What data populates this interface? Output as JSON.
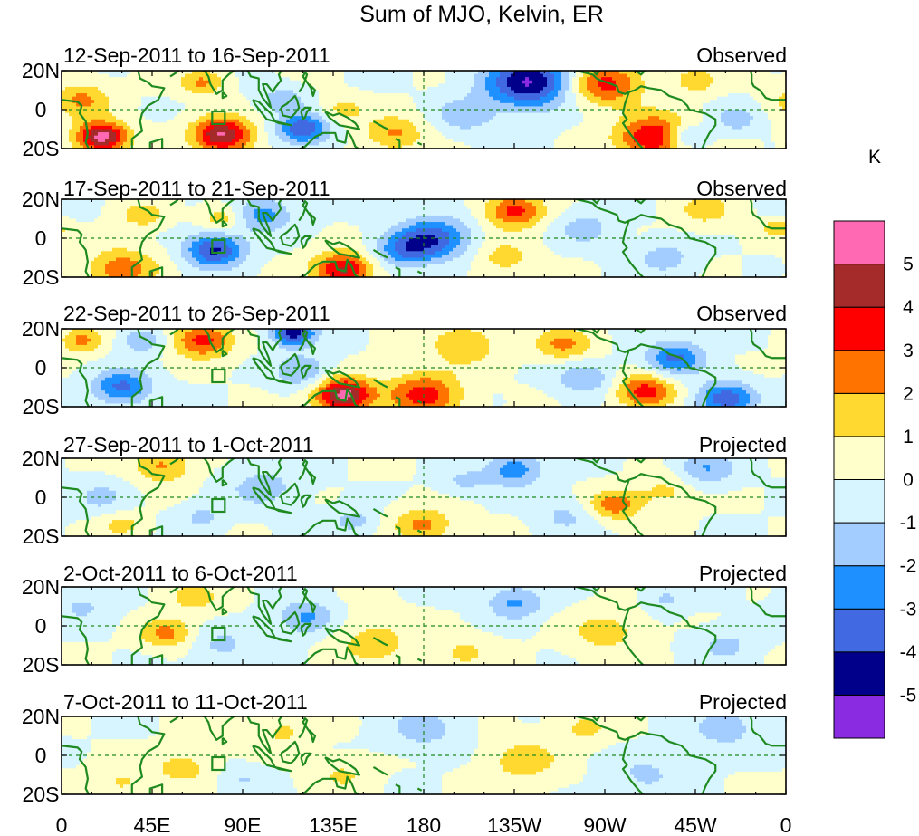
{
  "chart_data": {
    "type": "heatmap",
    "title": "Sum of MJO, Kelvin, ER",
    "units_label": "K",
    "y_tick_labels": [
      "20N",
      "0",
      "20S"
    ],
    "x_tick_labels": [
      "0",
      "45E",
      "90E",
      "135E",
      "180",
      "135W",
      "90W",
      "45W",
      "0"
    ],
    "lon_range": [
      0,
      360
    ],
    "lat_range": [
      -20,
      20
    ],
    "panels": [
      {
        "period": "12-Sep-2011 to 16-Sep-2011",
        "status": "Observed",
        "blobs": [
          [
            20,
            -14,
            3.5,
            5.5
          ],
          [
            80,
            -13,
            4,
            5.2
          ],
          [
            70,
            14,
            3,
            2.2
          ],
          [
            120,
            -10,
            3.5,
            -4
          ],
          [
            165,
            -12,
            4,
            2.2
          ],
          [
            232,
            14,
            6,
            -5
          ],
          [
            270,
            13,
            5,
            3.4
          ],
          [
            295,
            -14,
            5,
            4.3
          ],
          [
            310,
            -14,
            3,
            -2.5
          ],
          [
            335,
            -5,
            3,
            -1.7
          ],
          [
            10,
            5,
            4,
            2.2
          ],
          [
            315,
            15,
            3,
            1.7
          ],
          [
            200,
            -3,
            4,
            -1.7
          ],
          [
            140,
            0,
            3,
            1.4
          ],
          [
            110,
            5,
            3,
            -1.8
          ]
        ]
      },
      {
        "period": "17-Sep-2011 to 21-Sep-2011",
        "status": "Observed",
        "blobs": [
          [
            140,
            -16,
            4,
            4.3
          ],
          [
            76,
            -6,
            4,
            -4.2
          ],
          [
            225,
            14,
            4,
            3.4
          ],
          [
            100,
            12,
            4,
            -2.5
          ],
          [
            30,
            -16,
            5,
            2.5
          ],
          [
            185,
            0,
            5,
            -3.5
          ],
          [
            170,
            -6,
            4,
            -2.5
          ],
          [
            80,
            10,
            3,
            1.8
          ],
          [
            220,
            -10,
            4,
            1.5
          ],
          [
            300,
            -10,
            4,
            -1.5
          ],
          [
            320,
            15,
            4,
            1.5
          ],
          [
            40,
            12,
            3,
            1.7
          ],
          [
            355,
            5,
            2,
            1.9
          ],
          [
            260,
            5,
            4,
            -1.5
          ]
        ]
      },
      {
        "period": "22-Sep-2011 to 26-Sep-2011",
        "status": "Observed",
        "blobs": [
          [
            70,
            14,
            4,
            3.5
          ],
          [
            140,
            -14,
            4,
            5.5
          ],
          [
            30,
            -10,
            4,
            -3.3
          ],
          [
            115,
            18,
            3,
            -4.7
          ],
          [
            180,
            -14,
            5,
            3.5
          ],
          [
            290,
            -12,
            4,
            3.5
          ],
          [
            305,
            5,
            4,
            -3.2
          ],
          [
            330,
            -16,
            4,
            -3.6
          ],
          [
            200,
            12,
            5,
            1.8
          ],
          [
            250,
            12,
            4,
            2.3
          ],
          [
            40,
            14,
            3,
            -2
          ],
          [
            10,
            14,
            3,
            2.3
          ],
          [
            120,
            -2,
            4,
            -2
          ],
          [
            260,
            -5,
            4,
            -2
          ]
        ]
      },
      {
        "period": "27-Sep-2011 to 1-Oct-2011",
        "status": "Projected",
        "blobs": [
          [
            275,
            -4,
            3.5,
            2.6
          ],
          [
            180,
            -14,
            4,
            2.3
          ],
          [
            50,
            16,
            4,
            2.2
          ],
          [
            225,
            14,
            4,
            -2.6
          ],
          [
            320,
            15,
            4,
            -2
          ],
          [
            100,
            5,
            5,
            -1.5
          ],
          [
            20,
            0,
            4,
            -1.2
          ],
          [
            145,
            -12,
            3,
            -1.5
          ],
          [
            300,
            3,
            4,
            1.3
          ],
          [
            250,
            -10,
            4,
            -1.2
          ],
          [
            30,
            -14,
            3,
            1.4
          ],
          [
            70,
            -10,
            3,
            -1.3
          ],
          [
            200,
            8,
            3,
            -1.2
          ]
        ]
      },
      {
        "period": "2-Oct-2011 to 6-Oct-2011",
        "status": "Projected",
        "blobs": [
          [
            52,
            -4,
            3.5,
            2.3
          ],
          [
            122,
            4,
            4,
            -2.3
          ],
          [
            225,
            12,
            4,
            -2.2
          ],
          [
            155,
            -8,
            6,
            1.4
          ],
          [
            270,
            -3,
            5,
            1.5
          ],
          [
            80,
            -10,
            4,
            -1.3
          ],
          [
            330,
            -10,
            4,
            -1.3
          ],
          [
            65,
            15,
            4,
            1.4
          ],
          [
            10,
            10,
            4,
            -1.2
          ],
          [
            300,
            14,
            3,
            -1.2
          ],
          [
            200,
            -14,
            4,
            1.2
          ]
        ]
      },
      {
        "period": "7-Oct-2011 to 11-Oct-2011",
        "status": "Projected",
        "blobs": [
          [
            230,
            -3,
            5,
            1.6
          ],
          [
            180,
            14,
            5,
            -1.5
          ],
          [
            60,
            -6,
            4,
            1.5
          ],
          [
            330,
            14,
            5,
            -1.5
          ],
          [
            110,
            12,
            4,
            1.2
          ],
          [
            30,
            -14,
            4,
            1.2
          ],
          [
            290,
            -10,
            5,
            -1.2
          ],
          [
            140,
            -10,
            4,
            1.1
          ],
          [
            260,
            14,
            4,
            1.2
          ],
          [
            90,
            -12,
            3,
            -1
          ]
        ]
      }
    ],
    "colorbar": {
      "levels": [
        -5,
        -4,
        -3,
        -2,
        -1,
        0,
        1,
        2,
        3,
        4,
        5
      ],
      "level_labels": [
        "-5",
        "-4",
        "-3",
        "-2",
        "-1",
        "0",
        "1",
        "2",
        "3",
        "4",
        "5"
      ],
      "colors": [
        "#8a2be2",
        "#00008b",
        "#4169e1",
        "#1e90ff",
        "#a3cdff",
        "#d6f5ff",
        "#ffffcc",
        "#ffd92f",
        "#ff7400",
        "#ff0000",
        "#a52a2a",
        "#ff69b4"
      ]
    }
  },
  "colors": {
    "coast": "#1f8a1f",
    "grid": "#1f8a1f",
    "frame": "#000000"
  }
}
